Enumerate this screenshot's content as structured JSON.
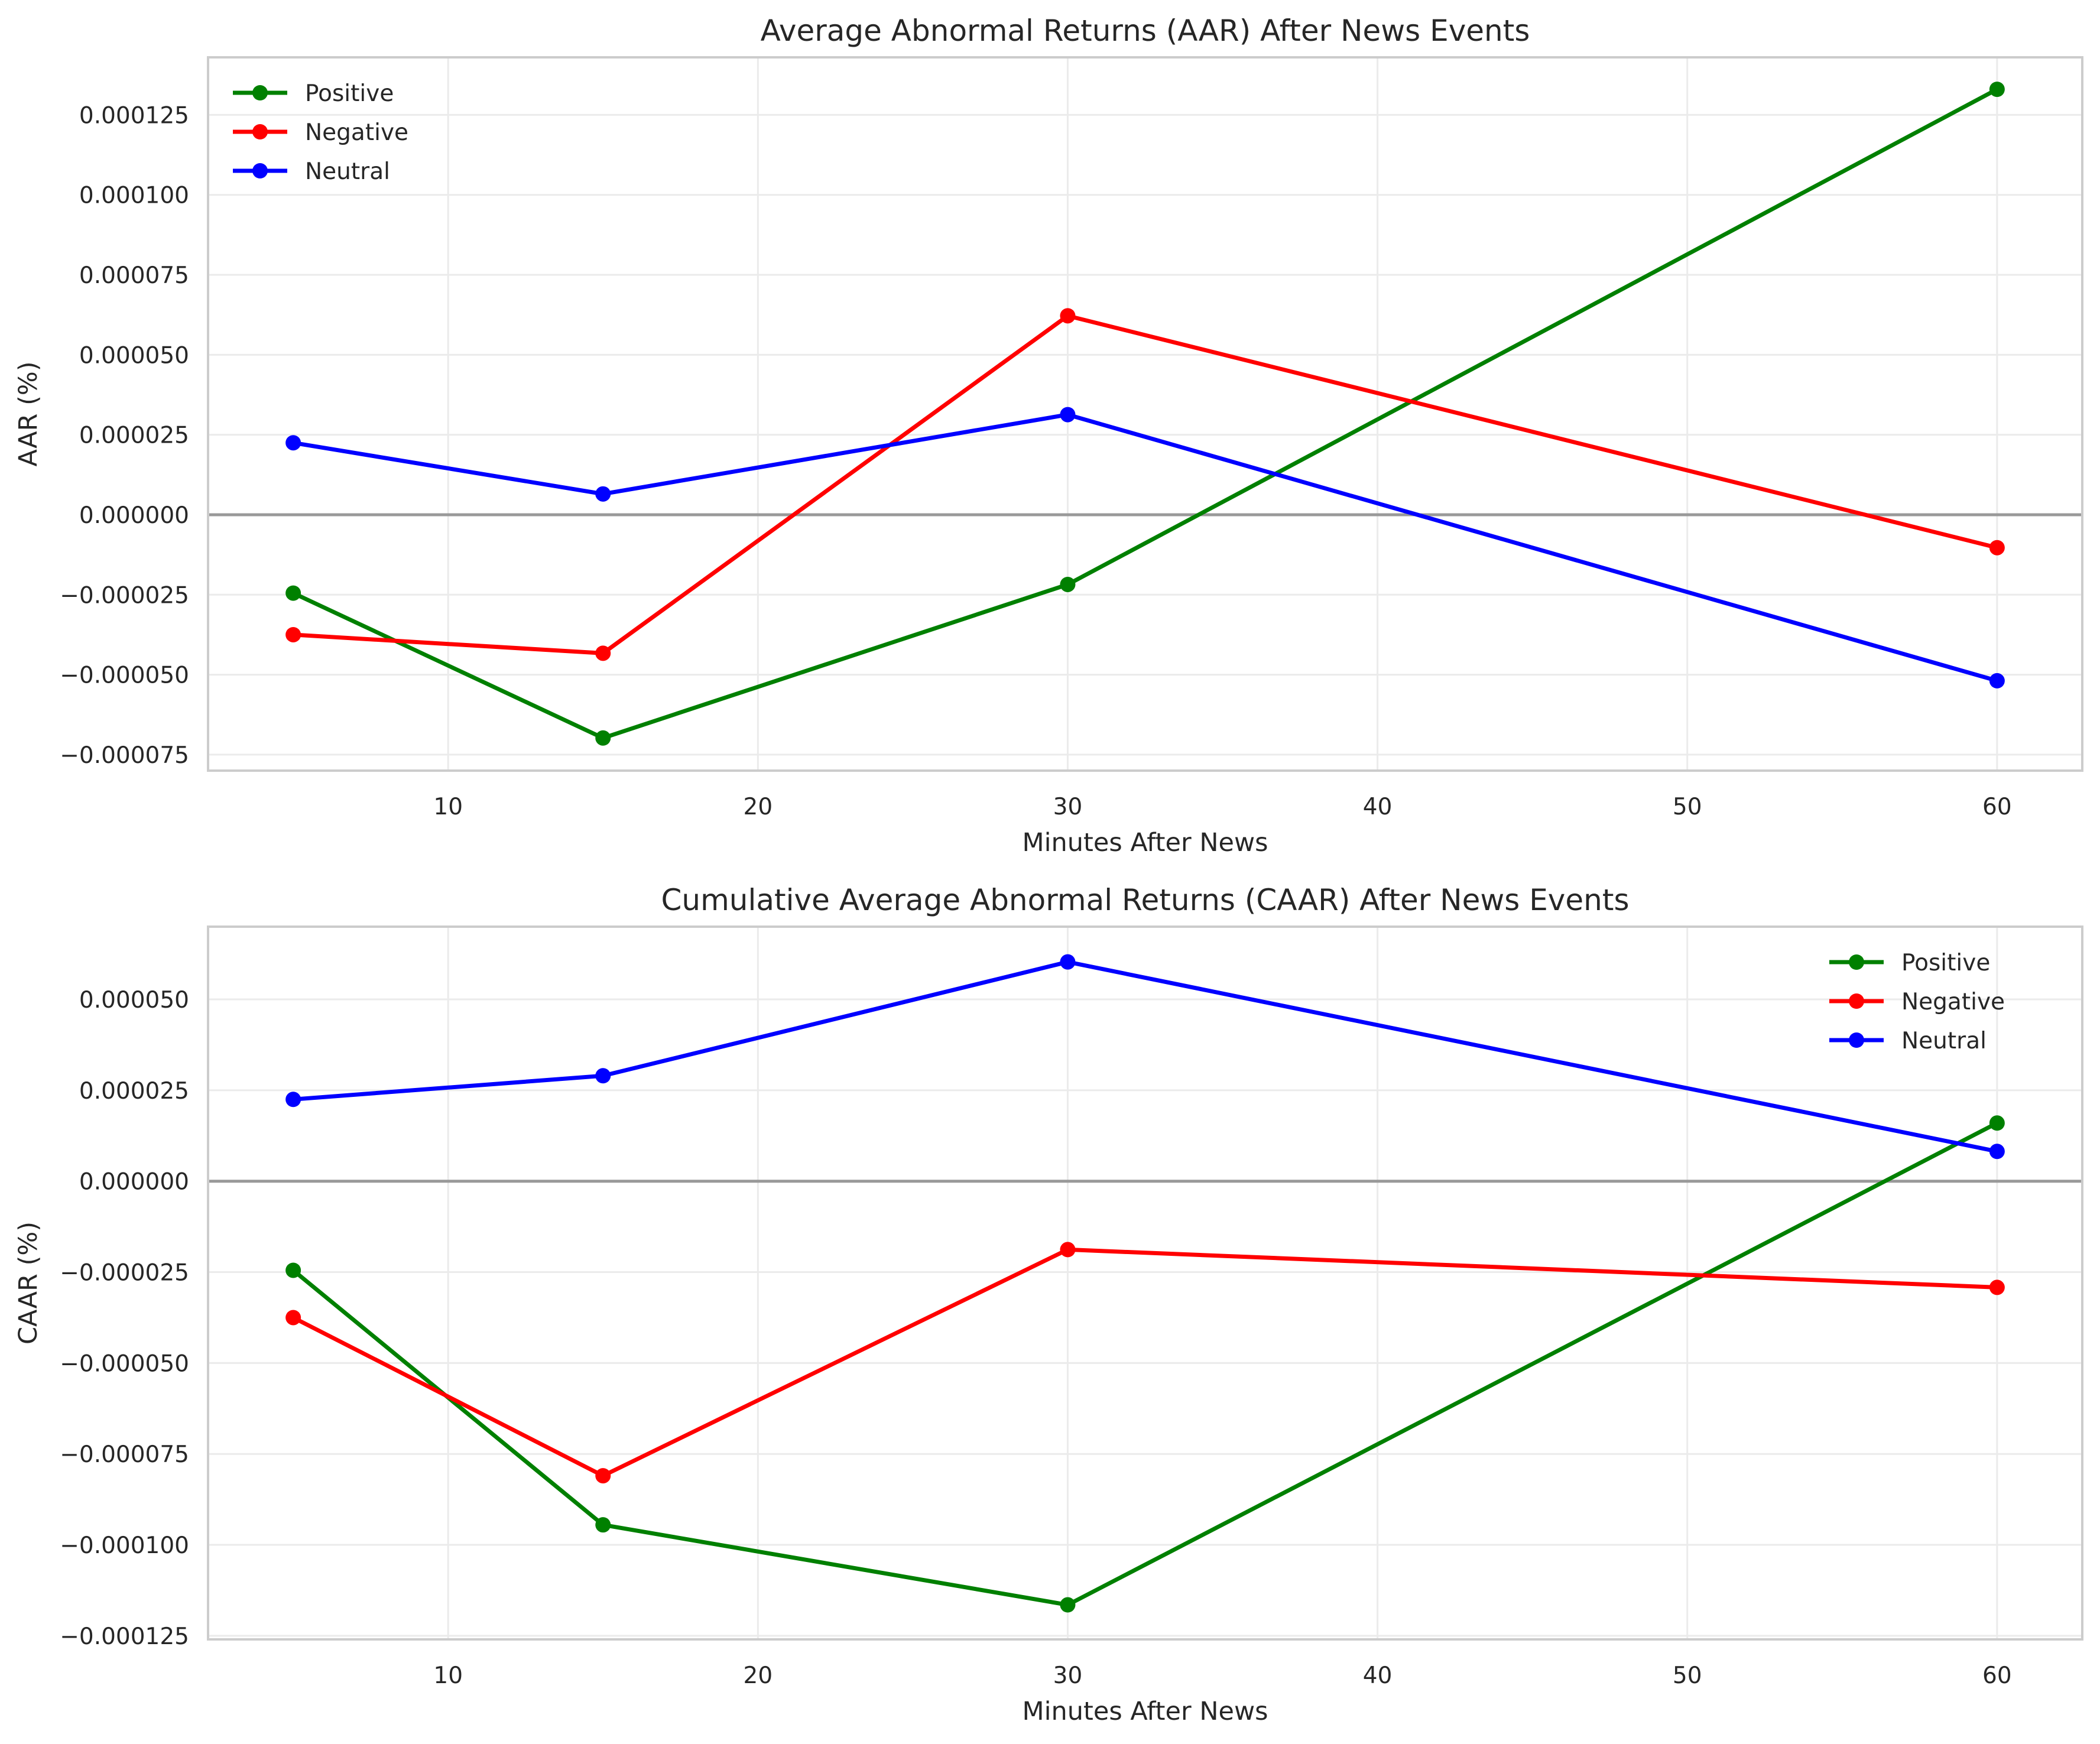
{
  "chart_data": [
    {
      "type": "line",
      "title": "Average Abnormal Returns (AAR) After News Events",
      "xlabel": "Minutes After News",
      "ylabel": "AAR (%)",
      "x": [
        5,
        15,
        30,
        60
      ],
      "xlim": [
        2.25,
        62.75
      ],
      "ylim": [
        -8e-05,
        0.000143
      ],
      "xticks": [
        10,
        20,
        30,
        40,
        50,
        60
      ],
      "xtick_labels": [
        "10",
        "20",
        "30",
        "40",
        "50",
        "60"
      ],
      "yticks": [
        -7.5e-05,
        -5e-05,
        -2.5e-05,
        0,
        2.5e-05,
        5e-05,
        7.5e-05,
        0.0001,
        0.000125
      ],
      "ytick_labels": [
        "−0.000075",
        "−0.000050",
        "−0.000025",
        "0.000000",
        "0.000025",
        "0.000050",
        "0.000075",
        "0.000100",
        "0.000125"
      ],
      "grid": true,
      "zero_line": true,
      "legend": "upper left",
      "series": [
        {
          "name": "Positive",
          "color": "#008000",
          "values": [
            -2.45e-05,
            -6.98e-05,
            -2.18e-05,
            0.000133
          ]
        },
        {
          "name": "Negative",
          "color": "#ff0000",
          "values": [
            -3.75e-05,
            -4.33e-05,
            6.22e-05,
            -1.03e-05
          ]
        },
        {
          "name": "Neutral",
          "color": "#0000ff",
          "values": [
            2.25e-05,
            6.5e-06,
            3.13e-05,
            -5.19e-05
          ]
        }
      ]
    },
    {
      "type": "line",
      "title": "Cumulative Average Abnormal Returns (CAAR) After News Events",
      "xlabel": "Minutes After News",
      "ylabel": "CAAR (%)",
      "x": [
        5,
        15,
        30,
        60
      ],
      "xlim": [
        2.25,
        62.75
      ],
      "ylim": [
        -0.000126,
        7e-05
      ],
      "xticks": [
        10,
        20,
        30,
        40,
        50,
        60
      ],
      "xtick_labels": [
        "10",
        "20",
        "30",
        "40",
        "50",
        "60"
      ],
      "yticks": [
        -0.000125,
        -0.0001,
        -7.5e-05,
        -5e-05,
        -2.5e-05,
        0,
        2.5e-05,
        5e-05
      ],
      "ytick_labels": [
        "−0.000125",
        "−0.000100",
        "−0.000075",
        "−0.000050",
        "−0.000025",
        "0.000000",
        "0.000025",
        "0.000050"
      ],
      "grid": true,
      "zero_line": true,
      "legend": "upper right",
      "series": [
        {
          "name": "Positive",
          "color": "#008000",
          "values": [
            -2.45e-05,
            -9.45e-05,
            -0.0001165,
            1.6e-05
          ]
        },
        {
          "name": "Negative",
          "color": "#ff0000",
          "values": [
            -3.75e-05,
            -8.1e-05,
            -1.88e-05,
            -2.92e-05
          ]
        },
        {
          "name": "Neutral",
          "color": "#0000ff",
          "values": [
            2.25e-05,
            2.9e-05,
            6.03e-05,
            8.2e-06
          ]
        }
      ]
    }
  ],
  "colors": {
    "spine": "#cccccc",
    "grid": "#ebebeb",
    "zero_line": "#999999",
    "text": "#262626"
  }
}
